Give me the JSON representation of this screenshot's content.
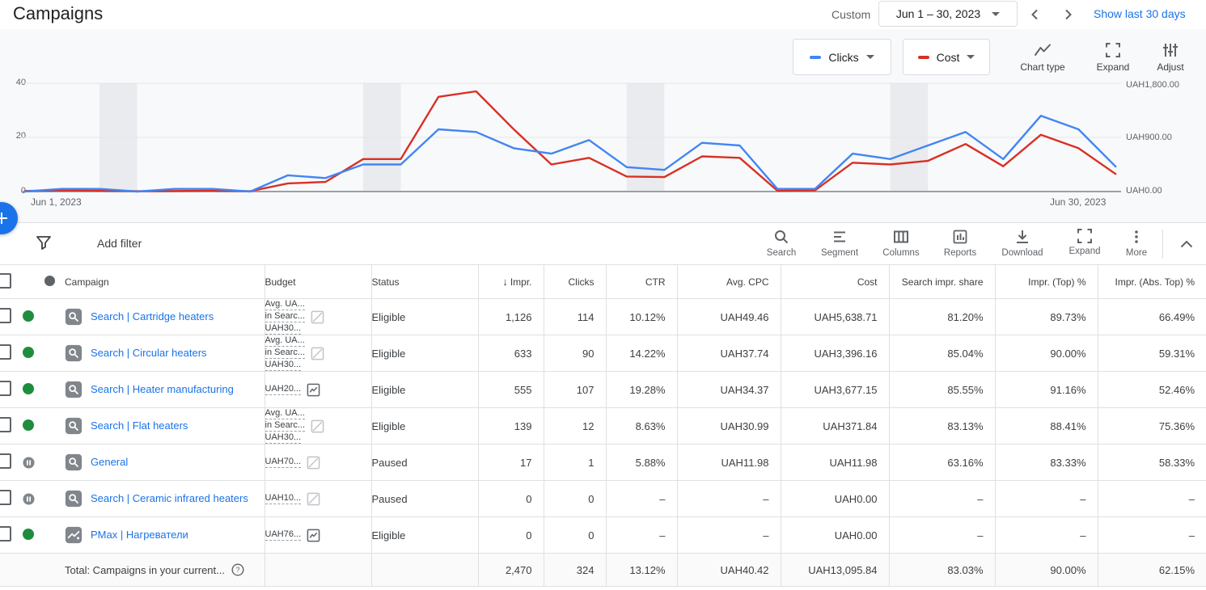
{
  "header": {
    "title": "Campaigns",
    "custom_label": "Custom",
    "date_range": "Jun 1 – 30, 2023",
    "show_last_label": "Show last 30 days"
  },
  "chart": {
    "controls": {
      "clicks_label": "Clicks",
      "cost_label": "Cost",
      "chart_type_label": "Chart type",
      "expand_label": "Expand",
      "adjust_label": "Adjust"
    }
  },
  "chart_data": {
    "type": "line",
    "x_label_start": "Jun 1, 2023",
    "x_label_end": "Jun 30, 2023",
    "x": [
      1,
      2,
      3,
      4,
      5,
      6,
      7,
      8,
      9,
      10,
      11,
      12,
      13,
      14,
      15,
      16,
      17,
      18,
      19,
      20,
      21,
      22,
      23,
      24,
      25,
      26,
      27,
      28,
      29,
      30
    ],
    "series": [
      {
        "name": "Clicks",
        "axis": "left",
        "color": "#4285f4",
        "values": [
          0,
          1,
          1,
          0,
          1,
          1,
          0,
          6,
          5,
          10,
          10,
          23,
          22,
          16,
          14,
          19,
          9,
          8,
          18,
          17,
          1,
          1,
          14,
          12,
          17,
          22,
          12,
          28,
          23,
          9
        ]
      },
      {
        "name": "Cost",
        "axis": "right",
        "color": "#d93025",
        "unit": "UAH",
        "values": [
          10,
          20,
          15,
          5,
          10,
          15,
          5,
          135,
          160,
          540,
          540,
          1575,
          1665,
          1035,
          450,
          560,
          250,
          240,
          585,
          560,
          15,
          20,
          480,
          450,
          510,
          790,
          420,
          945,
          720,
          285
        ]
      }
    ],
    "left_axis_range": [
      0,
      40
    ],
    "right_axis_range": [
      0,
      1800
    ],
    "left_ticks": [
      "40",
      "20",
      "0"
    ],
    "right_ticks": [
      "UAH1,800.00",
      "UAH900.00",
      "UAH0.00"
    ],
    "weekend_bands": [
      [
        3,
        4
      ],
      [
        10,
        11
      ],
      [
        17,
        18
      ],
      [
        24,
        25
      ]
    ],
    "band_color": "#e9ebee",
    "grid_color": "#e4e6e9",
    "axis_color": "#9aa0a6"
  },
  "toolbar": {
    "add_filter_label": "Add filter",
    "actions": [
      "Search",
      "Segment",
      "Columns",
      "Reports",
      "Download",
      "Expand",
      "More"
    ]
  },
  "table": {
    "columns": [
      "Campaign",
      "Budget",
      "Status",
      "Impr.",
      "Clicks",
      "CTR",
      "Avg. CPC",
      "Cost",
      "Search impr. share",
      "Impr. (Top) %",
      "Impr. (Abs. Top) %"
    ],
    "rows": [
      {
        "name": "Search | Cartridge heaters",
        "icon": "search",
        "state": "enabled",
        "status": "Eligible",
        "budget": [
          "Avg. UA...",
          "in Searc...",
          "UAH30..."
        ],
        "budget_icon": "chart-off",
        "impr": "1,126",
        "clicks": "114",
        "ctr": "10.12%",
        "avg_cpc": "UAH49.46",
        "cost": "UAH5,638.71",
        "search_impr_share": "81.20%",
        "impr_top": "89.73%",
        "impr_abs_top": "66.49%"
      },
      {
        "name": "Search | Circular heaters",
        "icon": "search",
        "state": "enabled",
        "status": "Eligible",
        "budget": [
          "Avg. UA...",
          "in Searc...",
          "UAH30..."
        ],
        "budget_icon": "chart-off",
        "impr": "633",
        "clicks": "90",
        "ctr": "14.22%",
        "avg_cpc": "UAH37.74",
        "cost": "UAH3,396.16",
        "search_impr_share": "85.04%",
        "impr_top": "90.00%",
        "impr_abs_top": "59.31%"
      },
      {
        "name": "Search | Heater manufacturing",
        "icon": "search",
        "state": "enabled",
        "status": "Eligible",
        "budget": [
          "UAH20..."
        ],
        "budget_icon": "chart",
        "impr": "555",
        "clicks": "107",
        "ctr": "19.28%",
        "avg_cpc": "UAH34.37",
        "cost": "UAH3,677.15",
        "search_impr_share": "85.55%",
        "impr_top": "91.16%",
        "impr_abs_top": "52.46%"
      },
      {
        "name": "Search | Flat heaters",
        "icon": "search",
        "state": "enabled",
        "status": "Eligible",
        "budget": [
          "Avg. UA...",
          "in Searc...",
          "UAH30..."
        ],
        "budget_icon": "chart-off",
        "impr": "139",
        "clicks": "12",
        "ctr": "8.63%",
        "avg_cpc": "UAH30.99",
        "cost": "UAH371.84",
        "search_impr_share": "83.13%",
        "impr_top": "88.41%",
        "impr_abs_top": "75.36%"
      },
      {
        "name": "General",
        "icon": "search",
        "state": "paused",
        "status": "Paused",
        "budget": [
          "UAH70..."
        ],
        "budget_icon": "chart-off",
        "impr": "17",
        "clicks": "1",
        "ctr": "5.88%",
        "avg_cpc": "UAH11.98",
        "cost": "UAH11.98",
        "search_impr_share": "63.16%",
        "impr_top": "83.33%",
        "impr_abs_top": "58.33%"
      },
      {
        "name": "Search | Ceramic infrared heaters",
        "icon": "search",
        "state": "paused",
        "status": "Paused",
        "budget": [
          "UAH10..."
        ],
        "budget_icon": "chart-off",
        "impr": "0",
        "clicks": "0",
        "ctr": "–",
        "avg_cpc": "–",
        "cost": "UAH0.00",
        "search_impr_share": "–",
        "impr_top": "–",
        "impr_abs_top": "–"
      },
      {
        "name": "PMax | Нагреватели",
        "icon": "pmax",
        "state": "enabled",
        "status": "Eligible",
        "budget": [
          "UAH76..."
        ],
        "budget_icon": "chart",
        "impr": "0",
        "clicks": "0",
        "ctr": "–",
        "avg_cpc": "–",
        "cost": "UAH0.00",
        "search_impr_share": "–",
        "impr_top": "–",
        "impr_abs_top": "–"
      }
    ],
    "total": {
      "label": "Total: Campaigns in your current...",
      "impr": "2,470",
      "clicks": "324",
      "ctr": "13.12%",
      "avg_cpc": "UAH40.42",
      "cost": "UAH13,095.84",
      "search_impr_share": "83.03%",
      "impr_top": "90.00%",
      "impr_abs_top": "62.15%"
    }
  }
}
